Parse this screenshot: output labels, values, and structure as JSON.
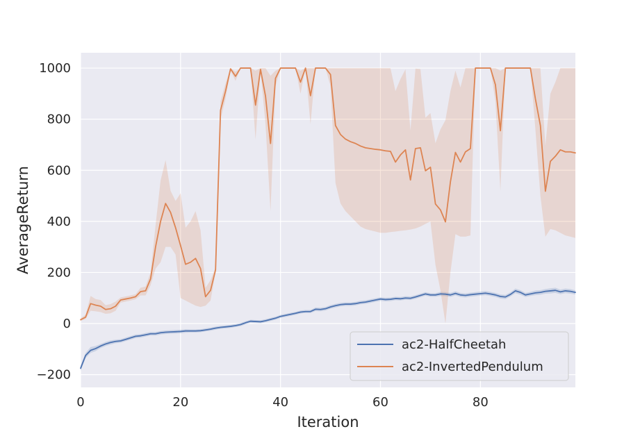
{
  "chart_data": {
    "type": "line",
    "title": "",
    "xlabel": "Iteration",
    "ylabel": "AverageReturn",
    "xlim": [
      0,
      99
    ],
    "ylim": [
      -250,
      1060
    ],
    "xticks": [
      0,
      20,
      40,
      60,
      80
    ],
    "yticks": [
      -200,
      0,
      200,
      400,
      600,
      800,
      1000
    ],
    "grid": true,
    "legend_position": "bottom-right",
    "colors": {
      "background": "#eaeaf2",
      "grid": "#ffffff",
      "text": "#262626"
    },
    "series": [
      {
        "name": "ac2-HalfCheetah",
        "color": "#4c72b0",
        "band_opacity": 0.2,
        "x": [
          0,
          1,
          2,
          3,
          4,
          5,
          6,
          7,
          8,
          9,
          10,
          11,
          12,
          13,
          14,
          15,
          16,
          17,
          18,
          19,
          20,
          21,
          22,
          23,
          24,
          25,
          26,
          27,
          28,
          29,
          30,
          31,
          32,
          33,
          34,
          35,
          36,
          37,
          38,
          39,
          40,
          41,
          42,
          43,
          44,
          45,
          46,
          47,
          48,
          49,
          50,
          51,
          52,
          53,
          54,
          55,
          56,
          57,
          58,
          59,
          60,
          61,
          62,
          63,
          64,
          65,
          66,
          67,
          68,
          69,
          70,
          71,
          72,
          73,
          74,
          75,
          76,
          77,
          78,
          79,
          80,
          81,
          82,
          83,
          84,
          85,
          86,
          87,
          88,
          89,
          90,
          91,
          92,
          93,
          94,
          95,
          96,
          97,
          98,
          99
        ],
        "y": [
          -175,
          -125,
          -105,
          -98,
          -88,
          -80,
          -74,
          -70,
          -68,
          -62,
          -56,
          -50,
          -48,
          -44,
          -40,
          -40,
          -36,
          -34,
          -33,
          -32,
          -31,
          -29,
          -29,
          -29,
          -28,
          -25,
          -22,
          -18,
          -15,
          -13,
          -11,
          -8,
          -4,
          3,
          9,
          8,
          7,
          11,
          16,
          21,
          28,
          32,
          36,
          40,
          45,
          47,
          47,
          56,
          55,
          58,
          65,
          70,
          74,
          76,
          76,
          78,
          82,
          84,
          88,
          92,
          96,
          94,
          95,
          98,
          97,
          100,
          99,
          104,
          110,
          116,
          112,
          112,
          116,
          115,
          112,
          118,
          112,
          110,
          113,
          115,
          117,
          119,
          116,
          112,
          106,
          104,
          114,
          128,
          122,
          112,
          116,
          120,
          122,
          126,
          128,
          130,
          124,
          128,
          126,
          122
        ],
        "y_lower": [
          -185,
          -135,
          -115,
          -108,
          -96,
          -88,
          -82,
          -77,
          -75,
          -69,
          -63,
          -57,
          -55,
          -51,
          -47,
          -47,
          -43,
          -41,
          -40,
          -39,
          -38,
          -36,
          -35,
          -35,
          -34,
          -31,
          -28,
          -24,
          -21,
          -19,
          -17,
          -14,
          -10,
          -3,
          3,
          2,
          1,
          5,
          10,
          15,
          22,
          26,
          30,
          34,
          39,
          41,
          41,
          49,
          48,
          51,
          58,
          63,
          67,
          69,
          69,
          71,
          75,
          77,
          81,
          85,
          89,
          87,
          88,
          91,
          90,
          93,
          92,
          97,
          103,
          109,
          105,
          105,
          108,
          107,
          104,
          110,
          104,
          102,
          105,
          107,
          109,
          111,
          108,
          104,
          98,
          96,
          106,
          119,
          113,
          104,
          108,
          111,
          113,
          117,
          118,
          120,
          115,
          119,
          117,
          114
        ],
        "y_upper": [
          -165,
          -115,
          -92,
          -88,
          -80,
          -72,
          -66,
          -63,
          -61,
          -55,
          -49,
          -43,
          -41,
          -37,
          -33,
          -33,
          -29,
          -27,
          -26,
          -25,
          -24,
          -22,
          -23,
          -23,
          -22,
          -19,
          -16,
          -12,
          -9,
          -7,
          -5,
          -2,
          2,
          9,
          15,
          14,
          13,
          17,
          22,
          27,
          34,
          38,
          42,
          46,
          51,
          53,
          53,
          63,
          62,
          65,
          72,
          77,
          81,
          83,
          83,
          85,
          89,
          91,
          95,
          99,
          103,
          101,
          102,
          105,
          104,
          107,
          106,
          111,
          117,
          123,
          119,
          119,
          124,
          123,
          120,
          126,
          120,
          118,
          121,
          123,
          125,
          127,
          124,
          120,
          114,
          112,
          122,
          137,
          131,
          120,
          124,
          129,
          131,
          135,
          138,
          140,
          133,
          137,
          135,
          130
        ]
      },
      {
        "name": "ac2-InvertedPendulum",
        "color": "#dd8452",
        "band_opacity": 0.2,
        "x": [
          0,
          1,
          2,
          3,
          4,
          5,
          6,
          7,
          8,
          9,
          10,
          11,
          12,
          13,
          14,
          15,
          16,
          17,
          18,
          19,
          20,
          21,
          22,
          23,
          24,
          25,
          26,
          27,
          28,
          29,
          30,
          31,
          32,
          33,
          34,
          35,
          36,
          37,
          38,
          39,
          40,
          41,
          42,
          43,
          44,
          45,
          46,
          47,
          48,
          49,
          50,
          51,
          52,
          53,
          54,
          55,
          56,
          57,
          58,
          59,
          60,
          61,
          62,
          63,
          64,
          65,
          66,
          67,
          68,
          69,
          70,
          71,
          72,
          73,
          74,
          75,
          76,
          77,
          78,
          79,
          80,
          81,
          82,
          83,
          84,
          85,
          86,
          87,
          88,
          89,
          90,
          91,
          92,
          93,
          94,
          95,
          96,
          97,
          98,
          99
        ],
        "y": [
          15,
          25,
          78,
          72,
          68,
          55,
          58,
          68,
          92,
          96,
          100,
          105,
          125,
          128,
          175,
          300,
          400,
          470,
          435,
          375,
          305,
          232,
          240,
          255,
          215,
          105,
          130,
          210,
          835,
          910,
          997,
          968,
          1000,
          1000,
          1000,
          855,
          995,
          890,
          705,
          960,
          1000,
          1000,
          1000,
          1000,
          945,
          1000,
          892,
          1000,
          1000,
          1000,
          975,
          775,
          740,
          722,
          712,
          705,
          695,
          688,
          685,
          682,
          680,
          676,
          674,
          632,
          660,
          680,
          562,
          685,
          688,
          598,
          612,
          468,
          445,
          398,
          555,
          670,
          632,
          672,
          685,
          1000,
          1000,
          1000,
          1000,
          935,
          755,
          1000,
          1000,
          1000,
          1000,
          1000,
          1000,
          880,
          775,
          518,
          635,
          655,
          680,
          672,
          672,
          668
        ],
        "y_lower": [
          10,
          18,
          50,
          48,
          45,
          38,
          40,
          50,
          82,
          86,
          90,
          95,
          110,
          110,
          150,
          215,
          240,
          300,
          300,
          270,
          100,
          90,
          80,
          70,
          65,
          70,
          90,
          200,
          800,
          880,
          990,
          950,
          1000,
          1000,
          1000,
          720,
          990,
          780,
          440,
          930,
          1000,
          1000,
          1000,
          1000,
          900,
          1000,
          780,
          1000,
          1000,
          1000,
          930,
          550,
          470,
          440,
          420,
          400,
          380,
          370,
          365,
          360,
          355,
          355,
          358,
          360,
          363,
          365,
          368,
          372,
          380,
          390,
          400,
          230,
          130,
          0,
          200,
          350,
          340,
          340,
          345,
          1000,
          1000,
          1000,
          1000,
          870,
          520,
          1000,
          1000,
          1000,
          1000,
          1000,
          1000,
          760,
          500,
          340,
          370,
          365,
          355,
          345,
          340,
          335
        ],
        "y_upper": [
          20,
          35,
          108,
          96,
          92,
          72,
          76,
          86,
          102,
          106,
          110,
          115,
          140,
          145,
          200,
          385,
          560,
          640,
          520,
          480,
          510,
          375,
          400,
          440,
          365,
          140,
          170,
          220,
          870,
          940,
          1000,
          986,
          1000,
          1000,
          1000,
          990,
          1000,
          1000,
          970,
          990,
          1000,
          1000,
          1000,
          1000,
          990,
          1000,
          1000,
          1000,
          1000,
          1000,
          1000,
          1000,
          1000,
          1000,
          1000,
          1000,
          1000,
          1000,
          1000,
          1000,
          1000,
          1000,
          1000,
          910,
          957,
          995,
          756,
          998,
          996,
          806,
          824,
          706,
          760,
          796,
          910,
          990,
          924,
          1000,
          1000,
          1000,
          1000,
          1000,
          1000,
          1000,
          990,
          1000,
          1000,
          1000,
          1000,
          1000,
          1000,
          1000,
          1000,
          696,
          900,
          945,
          1000,
          1000,
          1000,
          1000
        ]
      }
    ]
  }
}
